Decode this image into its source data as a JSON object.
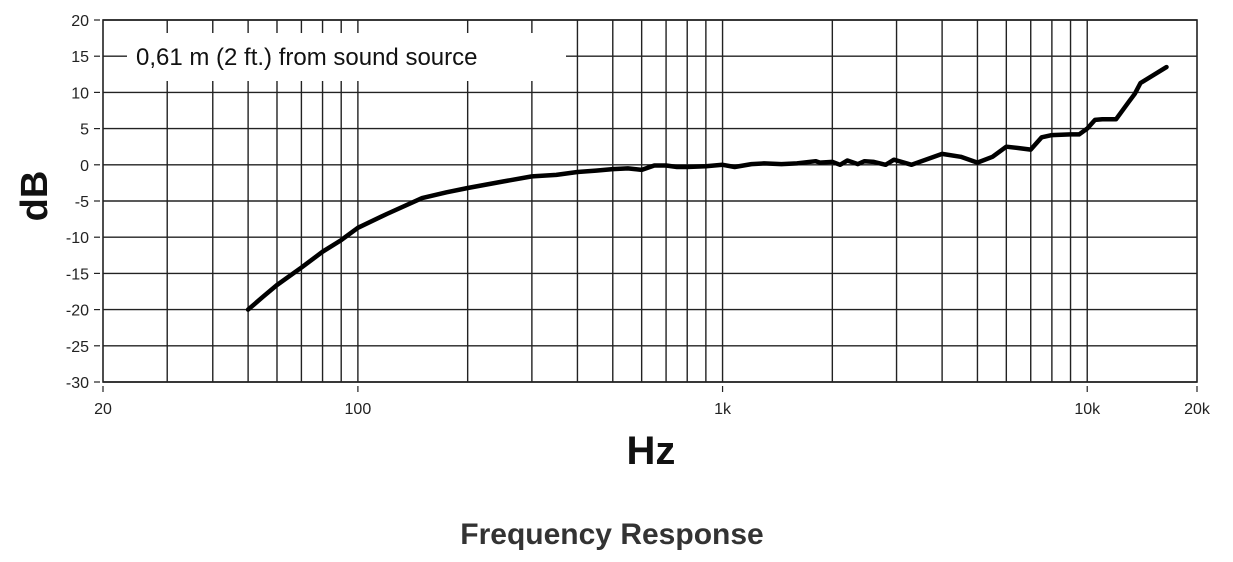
{
  "chart_data": {
    "type": "line",
    "title": "Frequency Response",
    "xlabel": "Hz",
    "ylabel": "dB",
    "xscale": "log",
    "xlim": [
      20,
      20000
    ],
    "ylim": [
      -30,
      20
    ],
    "grid": true,
    "legend": null,
    "x_tick_labels": [
      {
        "value": 20,
        "label": "20"
      },
      {
        "value": 100,
        "label": "100"
      },
      {
        "value": 1000,
        "label": "1k"
      },
      {
        "value": 10000,
        "label": "10k"
      },
      {
        "value": 20000,
        "label": "20k"
      }
    ],
    "y_ticks": [
      20,
      15,
      10,
      5,
      0,
      -5,
      -10,
      -15,
      -20,
      -25,
      -30
    ],
    "x_gridlines": [
      30,
      40,
      50,
      60,
      70,
      80,
      90,
      100,
      200,
      300,
      400,
      500,
      600,
      700,
      800,
      900,
      1000,
      2000,
      3000,
      4000,
      5000,
      6000,
      7000,
      8000,
      9000,
      10000
    ],
    "annotation": "0,61 m (2 ft.) from sound source",
    "series": [
      {
        "name": "Frequency response",
        "color": "#000000",
        "x": [
          50,
          55,
          60,
          70,
          80,
          90,
          100,
          120,
          150,
          175,
          200,
          250,
          300,
          350,
          400,
          450,
          500,
          550,
          600,
          650,
          700,
          750,
          800,
          900,
          1000,
          1080,
          1200,
          1300,
          1450,
          1600,
          1800,
          1850,
          2000,
          2100,
          2200,
          2350,
          2450,
          2600,
          2800,
          2950,
          3300,
          4000,
          4500,
          5000,
          5500,
          6000,
          6500,
          7000,
          7500,
          8000,
          9000,
          9500,
          10000,
          10500,
          11000,
          12000,
          13000,
          13500,
          14000,
          16500
        ],
        "y": [
          -20,
          -18.2,
          -16.6,
          -14.2,
          -12.0,
          -10.4,
          -8.7,
          -6.8,
          -4.6,
          -3.8,
          -3.2,
          -2.3,
          -1.6,
          -1.4,
          -1.0,
          -0.8,
          -0.6,
          -0.5,
          -0.7,
          -0.1,
          -0.1,
          -0.3,
          -0.3,
          -0.2,
          0.0,
          -0.3,
          0.1,
          0.2,
          0.1,
          0.2,
          0.5,
          0.3,
          0.4,
          0.0,
          0.6,
          0.1,
          0.5,
          0.4,
          0.0,
          0.7,
          0.0,
          1.5,
          1.1,
          0.3,
          1.1,
          2.5,
          2.3,
          2.1,
          3.8,
          4.1,
          4.2,
          4.2,
          5.0,
          6.2,
          6.3,
          6.3,
          8.7,
          9.8,
          11.3,
          13.5
        ]
      }
    ]
  }
}
